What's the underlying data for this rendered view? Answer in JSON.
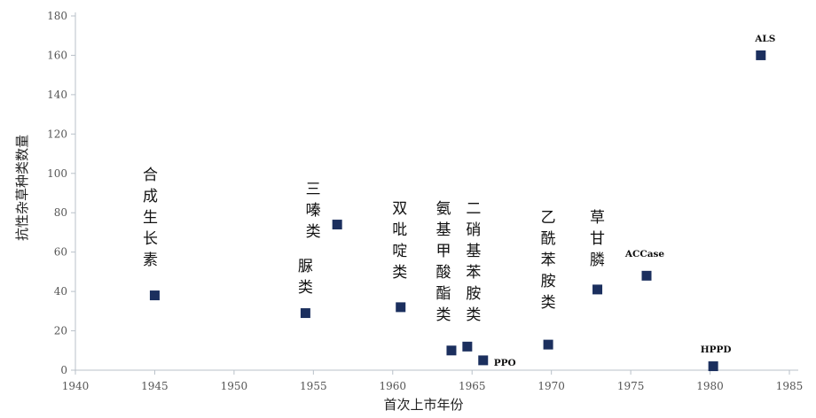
{
  "chart_data": {
    "type": "scatter",
    "title": "",
    "xlabel": "首次上市年份",
    "ylabel": "抗性杂草种类数量",
    "xlim": [
      1940,
      1985
    ],
    "ylim": [
      0,
      180
    ],
    "xticks": [
      1940,
      1945,
      1950,
      1955,
      1960,
      1965,
      1970,
      1975,
      1980,
      1985
    ],
    "yticks": [
      0,
      20,
      40,
      60,
      80,
      100,
      120,
      140,
      160,
      180
    ],
    "grid": false,
    "points": [
      {
        "x": 1945.0,
        "y": 38,
        "label": "合成生长素"
      },
      {
        "x": 1954.5,
        "y": 29,
        "label": "脲类"
      },
      {
        "x": 1956.5,
        "y": 74,
        "label": "三嗪类"
      },
      {
        "x": 1960.5,
        "y": 32,
        "label": "双吡啶类"
      },
      {
        "x": 1963.7,
        "y": 10,
        "label": "氨基甲酸酯类"
      },
      {
        "x": 1964.7,
        "y": 12,
        "label": "二硝基苯胺类"
      },
      {
        "x": 1965.7,
        "y": 5,
        "label": "PPO"
      },
      {
        "x": 1969.8,
        "y": 13,
        "label": "乙酰苯胺类"
      },
      {
        "x": 1972.9,
        "y": 41,
        "label": "草甘膦"
      },
      {
        "x": 1976.0,
        "y": 48,
        "label": "ACCase"
      },
      {
        "x": 1980.2,
        "y": 2,
        "label": "HPPD"
      },
      {
        "x": 1983.2,
        "y": 160,
        "label": "ALS"
      }
    ],
    "marker_color": "#1b2f5e"
  }
}
